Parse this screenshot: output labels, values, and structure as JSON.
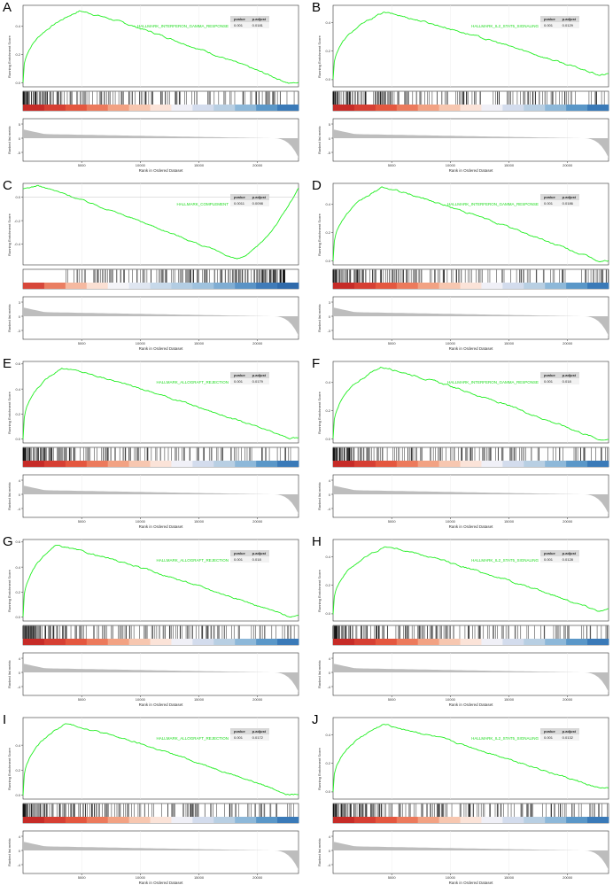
{
  "stat_headers": {
    "pvalue": "pvalue",
    "padjust": "p.adjust"
  },
  "axis_labels": {
    "running_es": "Running Enrichment Score",
    "ranked_metric": "Ranked list metric",
    "rank_x": "Rank in Ordered Dataset"
  },
  "x_ticks": [
    "5000",
    "10000",
    "15000",
    "20000"
  ],
  "colors": {
    "curve": "#22ee22",
    "hit": "#111111",
    "metric_fill": "#bdbdbd"
  },
  "chart_data": [
    {
      "type": "line",
      "label": "A",
      "title": "HALLMARK_INTERFERON_GAMMA_RESPONSE",
      "pvalue": "0.001",
      "padjust": "0.0181",
      "xlim": [
        0,
        23500
      ],
      "ylim": [
        -0.03,
        0.55
      ],
      "y_ticks": [
        "0.0",
        "0.2",
        "0.4"
      ],
      "metric_ticks": [
        "5",
        "0",
        "-5"
      ],
      "es_peak": 0.51,
      "peak_rank": 4800,
      "es_end": 0.0,
      "polarity": "pos"
    },
    {
      "type": "line",
      "label": "B",
      "title": "HALLMARK_IL2_STAT5_SIGNALING",
      "pvalue": "0.001",
      "padjust": "0.0129",
      "xlim": [
        0,
        23500
      ],
      "ylim": [
        -0.05,
        0.52
      ],
      "y_ticks": [
        "0.0",
        "0.2",
        "0.4"
      ],
      "metric_ticks": [
        "5",
        "0",
        "-5"
      ],
      "es_peak": 0.47,
      "peak_rank": 4300,
      "es_end": 0.04,
      "polarity": "pos"
    },
    {
      "type": "line",
      "label": "C",
      "title": "HALLMARK_COMPLEMENT",
      "pvalue": "0.0011",
      "padjust": "0.0098",
      "xlim": [
        0,
        23500
      ],
      "ylim": [
        -0.58,
        0.12
      ],
      "y_ticks": [
        "0.0",
        "-0.2",
        "-0.4"
      ],
      "metric_ticks": [
        "3",
        "0",
        "-3"
      ],
      "es_peak": -0.53,
      "peak_rank": 18200,
      "es_end": 0.0,
      "polarity": "neg"
    },
    {
      "type": "line",
      "label": "D",
      "title": "HALLMARK_INTERFERON_GAMMA_RESPONSE",
      "pvalue": "0.001",
      "padjust": "0.0186",
      "xlim": [
        0,
        23500
      ],
      "ylim": [
        -0.03,
        0.55
      ],
      "y_ticks": [
        "0.0",
        "0.2",
        "0.4"
      ],
      "metric_ticks": [
        "3",
        "0",
        "-3"
      ],
      "es_peak": 0.52,
      "peak_rank": 4200,
      "es_end": 0.0,
      "polarity": "pos"
    },
    {
      "type": "line",
      "label": "E",
      "title": "HALLMARK_ALLOGRAFT_REJECTION",
      "pvalue": "0.001",
      "padjust": "0.0179",
      "xlim": [
        0,
        23500
      ],
      "ylim": [
        -0.03,
        0.62
      ],
      "y_ticks": [
        "0.0",
        "0.2",
        "0.4",
        "0.6"
      ],
      "metric_ticks": [
        "4",
        "0",
        "-4"
      ],
      "es_peak": 0.57,
      "peak_rank": 3300,
      "es_end": 0.01,
      "polarity": "pos"
    },
    {
      "type": "line",
      "label": "F",
      "title": "HALLMARK_INTERFERON_GAMMA_RESPONSE",
      "pvalue": "0.001",
      "padjust": "0.018",
      "xlim": [
        0,
        23500
      ],
      "ylim": [
        -0.03,
        0.55
      ],
      "y_ticks": [
        "0.0",
        "0.2",
        "0.4"
      ],
      "metric_ticks": [
        "4",
        "0",
        "-4"
      ],
      "es_peak": 0.51,
      "peak_rank": 4100,
      "es_end": 0.0,
      "polarity": "pos"
    },
    {
      "type": "line",
      "label": "G",
      "title": "HALLMARK_ALLOGRAFT_REJECTION",
      "pvalue": "0.001",
      "padjust": "0.018",
      "xlim": [
        0,
        23500
      ],
      "ylim": [
        -0.03,
        0.62
      ],
      "y_ticks": [
        "0.0",
        "0.2",
        "0.4",
        "0.6"
      ],
      "metric_ticks": [
        "4",
        "0",
        "-4"
      ],
      "es_peak": 0.57,
      "peak_rank": 2800,
      "es_end": 0.01,
      "polarity": "pos"
    },
    {
      "type": "line",
      "label": "H",
      "title": "HALLMARK_IL2_STAT5_SIGNALING",
      "pvalue": "0.001",
      "padjust": "0.0128",
      "xlim": [
        0,
        23500
      ],
      "ylim": [
        -0.05,
        0.52
      ],
      "y_ticks": [
        "0.0",
        "0.2",
        "0.4"
      ],
      "metric_ticks": [
        "4",
        "0",
        "-4"
      ],
      "es_peak": 0.47,
      "peak_rank": 4500,
      "es_end": 0.03,
      "polarity": "pos"
    },
    {
      "type": "line",
      "label": "I",
      "title": "HALLMARK_ALLOGRAFT_REJECTION",
      "pvalue": "0.001",
      "padjust": "0.0172",
      "xlim": [
        0,
        23500
      ],
      "ylim": [
        -0.03,
        0.62
      ],
      "y_ticks": [
        "0.0",
        "0.2",
        "0.4"
      ],
      "metric_ticks": [
        "4",
        "0",
        "-4"
      ],
      "es_peak": 0.57,
      "peak_rank": 3600,
      "es_end": 0.01,
      "polarity": "pos"
    },
    {
      "type": "line",
      "label": "J",
      "title": "HALLMARK_IL2_STAT5_SIGNALING",
      "pvalue": "0.001",
      "padjust": "0.0132",
      "xlim": [
        0,
        23500
      ],
      "ylim": [
        -0.05,
        0.52
      ],
      "y_ticks": [
        "0.0",
        "0.2",
        "0.4"
      ],
      "metric_ticks": [
        "4",
        "0",
        "-4"
      ],
      "es_peak": 0.47,
      "peak_rank": 4300,
      "es_end": 0.03,
      "polarity": "pos"
    }
  ]
}
